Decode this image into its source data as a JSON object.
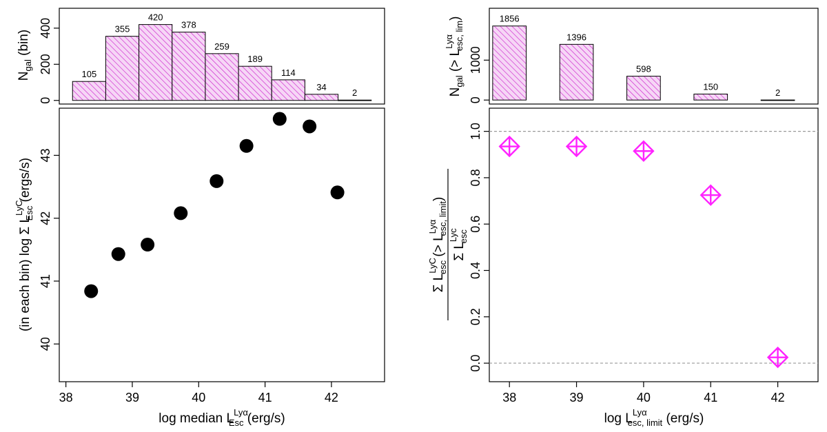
{
  "colors": {
    "hist_hatch": "#cc22cc",
    "hist_fill": "#f6d6f6",
    "marker_dot": "#000000",
    "marker_diamond": "#ff22ff",
    "reference_line": "#999999"
  },
  "chart_data": [
    {
      "id": "left-top",
      "type": "bar",
      "bin_edges": [
        38.1,
        38.6,
        39.1,
        39.6,
        40.1,
        40.6,
        41.1,
        41.6,
        42.1,
        42.6
      ],
      "values": [
        105,
        355,
        420,
        378,
        259,
        189,
        114,
        34,
        2
      ],
      "value_labels": [
        "105",
        "355",
        "420",
        "378",
        "259",
        "189",
        "114",
        "34",
        "2"
      ],
      "hatched": true,
      "ylim": [
        -20,
        510
      ],
      "yticks": [
        0,
        200,
        400
      ],
      "ytick_labels": [
        "0",
        "200",
        "400"
      ],
      "ylabel": {
        "main": "N",
        "sub": "gal",
        "rest": " (bin)"
      }
    },
    {
      "id": "left-bottom",
      "type": "scatter",
      "marker": "filled-circle",
      "x": [
        38.38,
        38.79,
        39.23,
        39.73,
        40.27,
        40.72,
        41.22,
        41.67,
        42.09
      ],
      "y": [
        40.84,
        41.43,
        41.58,
        42.08,
        42.59,
        43.15,
        43.58,
        43.46,
        42.41
      ],
      "xlim": [
        37.9,
        42.8
      ],
      "ylim": [
        39.4,
        43.75
      ],
      "xticks": [
        38,
        39,
        40,
        41,
        42
      ],
      "xtick_labels": [
        "38",
        "39",
        "40",
        "41",
        "42"
      ],
      "yticks": [
        40,
        41,
        42,
        43
      ],
      "ytick_labels": [
        "40",
        "41",
        "42",
        "43"
      ],
      "xlabel": {
        "main": "log median L",
        "sup": "Lyα",
        "sub": "Esc",
        "rest": " (erg/s)"
      },
      "ylabel": {
        "pre": "(in each bin) log Σ L",
        "sup": "LyC",
        "sub": "Esc",
        "rest": " (ergs/s)"
      }
    },
    {
      "id": "right-top",
      "type": "bar",
      "x": [
        38,
        39,
        40,
        41,
        42
      ],
      "values": [
        1856,
        1396,
        598,
        150,
        2
      ],
      "value_labels": [
        "1856",
        "1396",
        "598",
        "150",
        "2"
      ],
      "bar_width": 0.5,
      "hatched": true,
      "ylim": [
        -100,
        2300
      ],
      "yticks": [
        0,
        1000
      ],
      "ytick_labels": [
        "0",
        "1000"
      ],
      "ylabel": {
        "main": "N",
        "sub": "gal",
        "mid": " (> L",
        "sup": "Lyα",
        "sub2": "esc, lim",
        "rest": ")"
      }
    },
    {
      "id": "right-bottom",
      "type": "scatter",
      "marker": "diamond-cross",
      "x": [
        38,
        39,
        40,
        41,
        42
      ],
      "y": [
        0.935,
        0.935,
        0.915,
        0.725,
        0.025
      ],
      "xlim": [
        37.7,
        42.6
      ],
      "ylim": [
        -0.08,
        1.1
      ],
      "xticks": [
        38,
        39,
        40,
        41,
        42
      ],
      "xtick_labels": [
        "38",
        "39",
        "40",
        "41",
        "42"
      ],
      "yticks": [
        0.0,
        0.2,
        0.4,
        0.6,
        0.8,
        1.0
      ],
      "ytick_labels": [
        "0.0",
        "0.2",
        "0.4",
        "0.6",
        "0.8",
        "1.0"
      ],
      "reference_lines": [
        0,
        1
      ],
      "xlabel": {
        "main": "log L",
        "sup": "Lyα",
        "sub": "esc, limit",
        "rest": " (erg/s)"
      },
      "ylabel": {
        "num_main": "Σ L",
        "num_sup": "LyC",
        "num_sub": "esc",
        "num_mid": " (> L",
        "num_sup2": "Lyα",
        "num_sub2": "esc, limit",
        "num_rest": ")",
        "den_main": "Σ L",
        "den_sup": "Lyc",
        "den_sub": "esc"
      }
    }
  ]
}
